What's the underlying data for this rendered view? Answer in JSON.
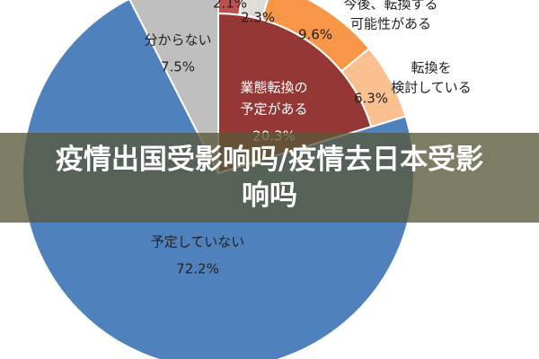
{
  "chart_data": {
    "type": "pie",
    "categories": [
      [
        "業態転換の",
        "予定がある"
      ],
      [
        "予定していない"
      ],
      [
        "分からない"
      ]
    ],
    "values": [
      20.3,
      72.2,
      7.5
    ],
    "value_labels": [
      "20.3%",
      "72.2%",
      "7.5%"
    ],
    "colors": [
      "#953735",
      "#4f81bd",
      "#bfbfbf"
    ],
    "ring": {
      "categories": [
        null,
        null,
        [
          "今後、転換する",
          "可能性がある"
        ],
        [
          "転換を",
          "検討している"
        ]
      ],
      "values": [
        2.1,
        2.3,
        9.6,
        6.3
      ],
      "value_labels": [
        "2.1%",
        "2.3%",
        "9.6%",
        "6.3%"
      ],
      "colors": [
        "#c0504d",
        "#e0dcd8",
        "#f79646",
        "#fac090"
      ]
    }
  },
  "overlay": {
    "title": "疫情出国受影响吗/疫情去日本受影响吗"
  }
}
